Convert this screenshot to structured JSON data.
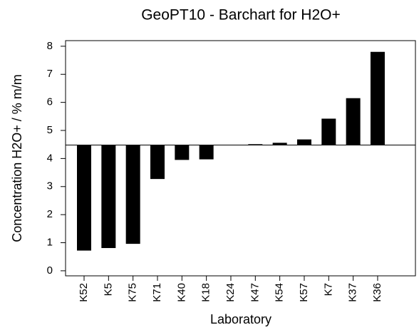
{
  "chart_data": {
    "type": "bar",
    "title": "GeoPT10 - Barchart for H2O+",
    "x_label": "Laboratory",
    "y_label": "Concentration H2O+ / % m/m",
    "categories": [
      "K52",
      "K5",
      "K75",
      "K71",
      "K40",
      "K18",
      "K24",
      "K47",
      "K54",
      "K57",
      "K7",
      "K37",
      "K36"
    ],
    "values": [
      0.72,
      0.81,
      0.96,
      3.27,
      3.95,
      3.97,
      4.48,
      4.51,
      4.56,
      4.68,
      5.42,
      6.15,
      7.8
    ],
    "baseline": 4.48,
    "color": "#000000",
    "ylim": [
      -0.18,
      8.2
    ],
    "yticks": [
      0,
      1,
      2,
      3,
      4,
      5,
      6,
      7,
      8
    ]
  }
}
